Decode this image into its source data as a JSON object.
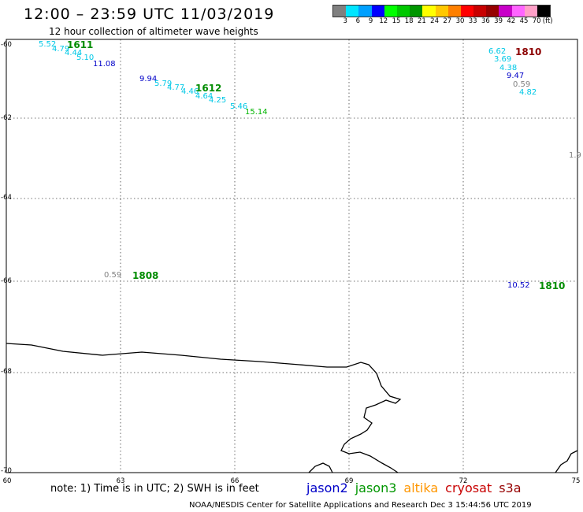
{
  "header": {
    "title": "12:00 – 23:59 UTC 11/03/2019",
    "subtitle": "12 hour collection of altimeter wave heights"
  },
  "legend": {
    "unit": "(ft)",
    "colors": [
      "#808080",
      "#00e5ff",
      "#00a0ff",
      "#0000ff",
      "#00ff00",
      "#00c800",
      "#009600",
      "#ffff00",
      "#ffc800",
      "#ff8000",
      "#ff0000",
      "#c80000",
      "#960000",
      "#c800c8",
      "#ff64ff",
      "#ffa0c8",
      "#000000"
    ],
    "labels": [
      "3",
      "6",
      "9",
      "12",
      "15",
      "18",
      "21",
      "24",
      "27",
      "30",
      "33",
      "36",
      "39",
      "42",
      "45",
      "70"
    ]
  },
  "map": {
    "lat_labels": [
      "-60",
      "-62",
      "-64",
      "-66",
      "-68",
      "-70"
    ],
    "lon_labels": [
      "60",
      "63",
      "66",
      "69",
      "72",
      "75"
    ],
    "partial_right_value": "1.9"
  },
  "observations": [
    {
      "t": "5.52",
      "c": "#00c8e6"
    },
    {
      "t": "4.79",
      "c": "#00c8e6"
    },
    {
      "t": "4.44",
      "c": "#00c8e6"
    },
    {
      "t": "5.10",
      "c": "#00c8e6"
    },
    {
      "t": "11.08",
      "c": "#0000c8"
    },
    {
      "t": "9.94",
      "c": "#0000c8"
    },
    {
      "t": "5.79",
      "c": "#00c8e6"
    },
    {
      "t": "4.77",
      "c": "#00c8e6"
    },
    {
      "t": "4.46",
      "c": "#00c8e6"
    },
    {
      "t": "4.64",
      "c": "#00c8e6"
    },
    {
      "t": "4.25",
      "c": "#00c8e6"
    },
    {
      "t": "5.46",
      "c": "#00c8e6"
    },
    {
      "t": "15.14",
      "c": "#00b400"
    },
    {
      "t": "6.62",
      "c": "#00c8e6"
    },
    {
      "t": "3.69",
      "c": "#00c8e6"
    },
    {
      "t": "4.38",
      "c": "#00c8e6"
    },
    {
      "t": "9.47",
      "c": "#0000c8"
    },
    {
      "t": "0.59",
      "c": "#808080"
    },
    {
      "t": "4.82",
      "c": "#00c8e6"
    },
    {
      "t": "0.59",
      "c": "#808080"
    },
    {
      "t": "10.52",
      "c": "#0000c8"
    }
  ],
  "passes": [
    {
      "t": "1611",
      "c": "#008c00"
    },
    {
      "t": "1612",
      "c": "#008c00"
    },
    {
      "t": "1810",
      "c": "#8c0000"
    },
    {
      "t": "1808",
      "c": "#008c00"
    },
    {
      "t": "1810",
      "c": "#008c00"
    }
  ],
  "footer": {
    "note": "note: 1) Time is in UTC; 2) SWH is in feet",
    "satellites": [
      {
        "name": "jason2",
        "color": "#0000c8"
      },
      {
        "name": "jason3",
        "color": "#009600"
      },
      {
        "name": "altika",
        "color": "#ff9600"
      },
      {
        "name": "cryosat",
        "color": "#c80000"
      },
      {
        "name": "s3a",
        "color": "#960000"
      }
    ],
    "credit": "NOAA/NESDIS Center for Satellite Applications and Research   Dec  3 15:44:56 UTC 2019"
  }
}
